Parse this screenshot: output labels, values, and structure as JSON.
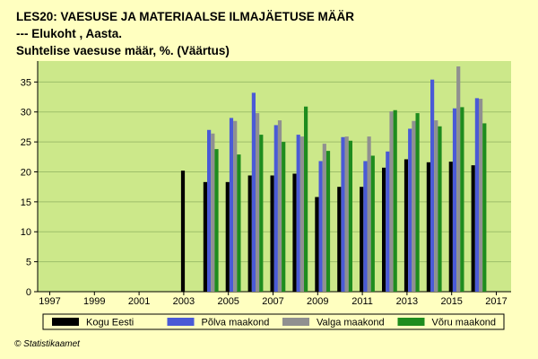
{
  "title_lines": [
    "LES20: VAESUSE JA MATERIAALSE ILMAJÄETUSE MÄÄR",
    "--- Elukoht , Aasta.",
    "Suhtelise vaesuse määr, %. (Väärtus)"
  ],
  "footer": "© Statistikaamet",
  "chart_data": {
    "type": "bar",
    "categories": [
      "1997",
      "1998",
      "1999",
      "2000",
      "2001",
      "2002",
      "2003",
      "2004",
      "2005",
      "2006",
      "2007",
      "2008",
      "2009",
      "2010",
      "2011",
      "2012",
      "2013",
      "2014",
      "2015",
      "2016",
      "2017"
    ],
    "x_tick_labels": [
      "1997",
      "1999",
      "2001",
      "2003",
      "2005",
      "2007",
      "2009",
      "2011",
      "2013",
      "2015",
      "2017"
    ],
    "y_ticks": [
      0,
      5,
      10,
      15,
      20,
      25,
      30,
      35
    ],
    "ylim": [
      0,
      38.5
    ],
    "grid": true,
    "legend_position": "bottom",
    "plot_background": "#cce88a",
    "series": [
      {
        "name": "Kogu Eesti",
        "color": "#000000",
        "values": [
          null,
          null,
          null,
          null,
          null,
          null,
          20.2,
          18.3,
          18.3,
          19.4,
          19.4,
          19.7,
          15.8,
          17.5,
          17.5,
          20.7,
          22.1,
          21.6,
          21.7,
          21.1,
          null
        ]
      },
      {
        "name": "Põlva maakond",
        "color": "#4a5ad6",
        "values": [
          null,
          null,
          null,
          null,
          null,
          null,
          null,
          27.0,
          29.0,
          33.2,
          27.8,
          26.2,
          21.8,
          25.8,
          21.8,
          23.4,
          27.2,
          35.4,
          30.6,
          32.3,
          null
        ]
      },
      {
        "name": "Valga maakond",
        "color": "#909090",
        "values": [
          null,
          null,
          null,
          null,
          null,
          null,
          null,
          26.4,
          28.5,
          29.8,
          28.6,
          25.9,
          24.7,
          25.9,
          25.9,
          30.1,
          28.5,
          28.6,
          37.6,
          32.2,
          null
        ]
      },
      {
        "name": "Võru maakond",
        "color": "#1e8c1e",
        "values": [
          null,
          null,
          null,
          null,
          null,
          null,
          null,
          23.8,
          22.9,
          26.2,
          25.0,
          30.9,
          23.5,
          25.2,
          22.7,
          30.3,
          29.8,
          27.6,
          30.8,
          28.1,
          null
        ]
      }
    ]
  }
}
